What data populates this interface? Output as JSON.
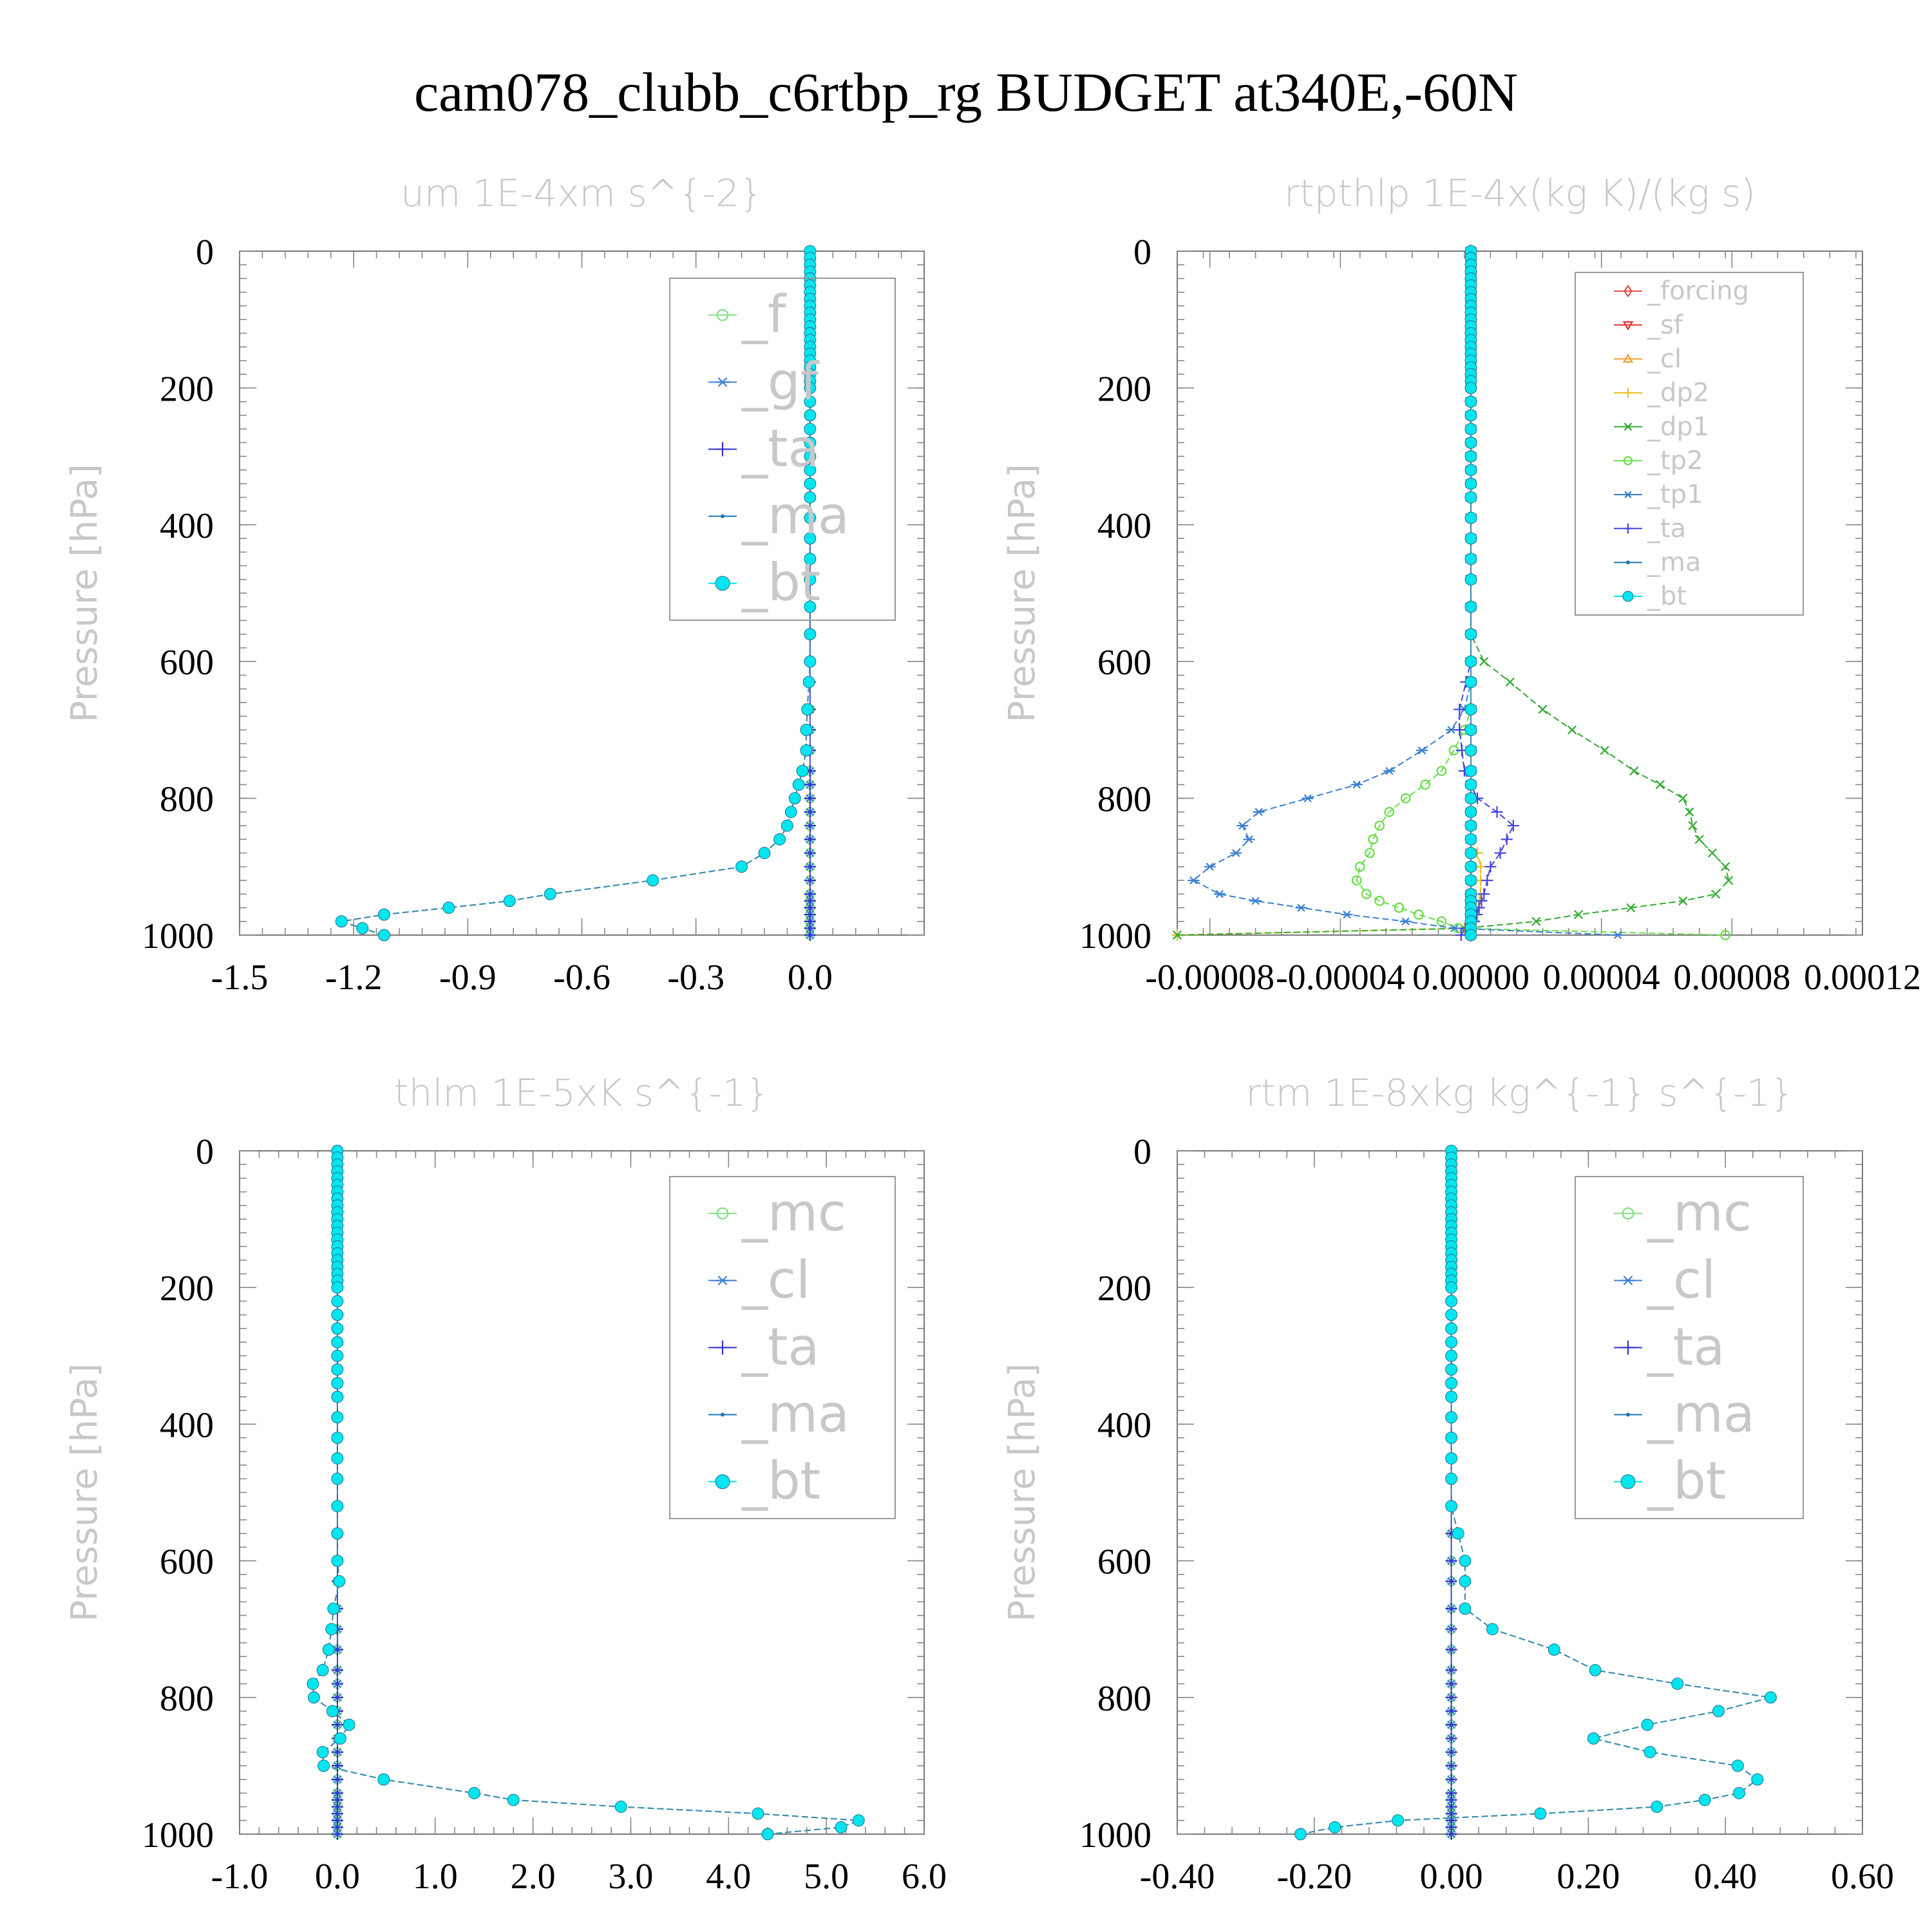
{
  "title": "cam078_clubb_c6rtbp_rg  BUDGET at340E,-60N",
  "chart_data": [
    {
      "type": "line",
      "title": "um  1E-4xm s^{-2}",
      "ylabel": "Pressure [hPa]",
      "xlim": [
        -1.5,
        0.3
      ],
      "ylim": [
        1000,
        0
      ],
      "xticks": [
        -1.5,
        -1.2,
        -0.9,
        -0.6,
        -0.3,
        0.0
      ],
      "xtick_labels": [
        "-1.5",
        "-1.2",
        "-0.9",
        "-0.6",
        "-0.3",
        "0.0"
      ],
      "yticks": [
        0,
        200,
        400,
        600,
        800,
        1000
      ],
      "ytick_labels": [
        "0",
        "200",
        "400",
        "600",
        "800",
        "1000"
      ],
      "legend_position": "top-right",
      "legend_font": 80,
      "legend_box": [
        1040,
        432,
        1390,
        963
      ],
      "pressure": [
        0,
        10,
        20,
        30,
        40,
        50,
        60,
        70,
        80,
        90,
        100,
        110,
        120,
        130,
        140,
        150,
        160,
        170,
        180,
        190,
        200,
        220,
        240,
        260,
        280,
        300,
        320,
        340,
        360,
        390,
        420,
        450,
        480,
        520,
        560,
        600,
        630,
        670,
        700,
        730,
        760,
        780,
        800,
        820,
        840,
        860,
        880,
        900,
        920,
        940,
        950,
        960,
        970,
        980,
        990,
        1000
      ],
      "series": [
        {
          "name": "_f",
          "color": "#80e080",
          "marker": "circle-open",
          "mode": "zero"
        },
        {
          "name": "_gf",
          "color": "#3a7fd0",
          "marker": "star",
          "mode": "zero"
        },
        {
          "name": "_ta",
          "color": "#3333cc",
          "marker": "plus",
          "mode": "zero"
        },
        {
          "name": "_ma",
          "color": "#1f77b4",
          "marker": "dot",
          "mode": "trace"
        },
        {
          "name": "_bt",
          "color": "#00e5ee",
          "marker": "filled",
          "mode": "trace"
        }
      ],
      "profile": [
        [
          0,
          0
        ],
        [
          600,
          0
        ],
        [
          700,
          -0.01
        ],
        [
          730,
          -0.01
        ],
        [
          760,
          -0.02
        ],
        [
          780,
          -0.03
        ],
        [
          800,
          -0.04
        ],
        [
          820,
          -0.05
        ],
        [
          840,
          -0.06
        ],
        [
          860,
          -0.08
        ],
        [
          880,
          -0.12
        ],
        [
          900,
          -0.18
        ],
        [
          910,
          -0.3
        ],
        [
          925,
          -0.47
        ],
        [
          935,
          -0.63
        ],
        [
          950,
          -0.79
        ],
        [
          960,
          -0.95
        ],
        [
          970,
          -1.12
        ],
        [
          978,
          -1.24
        ],
        [
          988,
          -1.2
        ],
        [
          995,
          -1.12
        ]
      ]
    },
    {
      "type": "line",
      "title": "rtpthlp  1E-4x(kg K)/(kg s)",
      "ylabel": "Pressure [hPa]",
      "xlim": [
        -9e-05,
        0.00012
      ],
      "ylim": [
        1000,
        0
      ],
      "xticks": [
        -8e-05,
        -4e-05,
        0.0,
        4e-05,
        8e-05,
        0.00012
      ],
      "xtick_labels": [
        "-0.00008",
        "-0.00004",
        "0.00000",
        "0.00004",
        "0.00008",
        "0.00012"
      ],
      "yticks": [
        0,
        200,
        400,
        600,
        800,
        1000
      ],
      "ytick_labels": [
        "0",
        "200",
        "400",
        "600",
        "800",
        "1000"
      ],
      "legend_position": "top-right",
      "legend_font": 40,
      "legend_box": [
        2446,
        423,
        2800,
        955
      ],
      "pressure": [
        0,
        10,
        20,
        30,
        40,
        50,
        60,
        70,
        80,
        90,
        100,
        110,
        120,
        130,
        140,
        150,
        160,
        170,
        180,
        190,
        200,
        220,
        240,
        260,
        280,
        300,
        320,
        340,
        360,
        390,
        420,
        450,
        480,
        520,
        560,
        600,
        630,
        670,
        700,
        730,
        760,
        780,
        800,
        820,
        840,
        860,
        880,
        900,
        920,
        940,
        950,
        960,
        970,
        980,
        990,
        1000
      ],
      "series": [
        {
          "name": "_forcing",
          "color": "#e05050",
          "marker": "diamond",
          "mode": "zero"
        },
        {
          "name": "_sf",
          "color": "#e03030",
          "marker": "tri-down",
          "mode": "zero"
        },
        {
          "name": "_cl",
          "color": "#f0a030",
          "marker": "tri-up",
          "mode": "zero"
        },
        {
          "name": "_dp2",
          "color": "#e8c020",
          "marker": "plus",
          "mode": "profile",
          "profile": [
            [
              0,
              0
            ],
            [
              860,
              0
            ],
            [
              880,
              2e-06
            ],
            [
              900,
              3e-06
            ],
            [
              940,
              3e-06
            ],
            [
              970,
              2e-06
            ],
            [
              990,
              -2e-06
            ],
            [
              995,
              -9e-05
            ]
          ]
        },
        {
          "name": "_dp1",
          "color": "#33aa33",
          "marker": "x",
          "mode": "profile",
          "profile": [
            [
              0,
              0
            ],
            [
              560,
              0
            ],
            [
              600,
              4e-06
            ],
            [
              630,
              1.2e-05
            ],
            [
              670,
              2.2e-05
            ],
            [
              700,
              3.1e-05
            ],
            [
              730,
              4.1e-05
            ],
            [
              760,
              5e-05
            ],
            [
              780,
              5.8e-05
            ],
            [
              800,
              6.5e-05
            ],
            [
              820,
              6.7e-05
            ],
            [
              840,
              6.8e-05
            ],
            [
              860,
              7e-05
            ],
            [
              880,
              7.4e-05
            ],
            [
              900,
              7.8e-05
            ],
            [
              920,
              7.9e-05
            ],
            [
              940,
              7.5e-05
            ],
            [
              950,
              6.5e-05
            ],
            [
              960,
              4.9e-05
            ],
            [
              970,
              3.3e-05
            ],
            [
              980,
              2e-05
            ],
            [
              990,
              -2e-06
            ],
            [
              995,
              -9e-05
            ]
          ]
        },
        {
          "name": "_tp2",
          "color": "#66dd44",
          "marker": "circle-open",
          "mode": "profile",
          "profile": [
            [
              0,
              0
            ],
            [
              680,
              0
            ],
            [
              720,
              -4e-06
            ],
            [
              760,
              -9e-06
            ],
            [
              780,
              -1.4e-05
            ],
            [
              800,
              -2e-05
            ],
            [
              820,
              -2.5e-05
            ],
            [
              840,
              -2.8e-05
            ],
            [
              860,
              -3e-05
            ],
            [
              880,
              -3.1e-05
            ],
            [
              900,
              -3.4e-05
            ],
            [
              920,
              -3.5e-05
            ],
            [
              940,
              -3.2e-05
            ],
            [
              950,
              -2.8e-05
            ],
            [
              960,
              -2.2e-05
            ],
            [
              970,
              -1.6e-05
            ],
            [
              980,
              -9e-06
            ],
            [
              990,
              -4e-06
            ],
            [
              995,
              7.8e-05
            ]
          ]
        },
        {
          "name": "_tp1",
          "color": "#3a7fd0",
          "marker": "star",
          "mode": "profile",
          "profile": [
            [
              0,
              0
            ],
            [
              640,
              0
            ],
            [
              670,
              -2e-06
            ],
            [
              700,
              -6e-06
            ],
            [
              730,
              -1.5e-05
            ],
            [
              760,
              -2.5e-05
            ],
            [
              780,
              -3.5e-05
            ],
            [
              800,
              -5e-05
            ],
            [
              820,
              -6.5e-05
            ],
            [
              840,
              -7e-05
            ],
            [
              860,
              -6.8e-05
            ],
            [
              880,
              -7.2e-05
            ],
            [
              900,
              -8e-05
            ],
            [
              920,
              -8.5e-05
            ],
            [
              940,
              -7.7e-05
            ],
            [
              950,
              -6.6e-05
            ],
            [
              960,
              -5.2e-05
            ],
            [
              970,
              -3.8e-05
            ],
            [
              980,
              -2e-05
            ],
            [
              990,
              -5e-06
            ],
            [
              995,
              4.5e-05
            ]
          ]
        },
        {
          "name": "_ta",
          "color": "#4444dd",
          "marker": "plus",
          "mode": "profile",
          "profile": [
            [
              0,
              0
            ],
            [
              600,
              0
            ],
            [
              640,
              -2e-06
            ],
            [
              680,
              -4e-06
            ],
            [
              720,
              -3e-06
            ],
            [
              760,
              -2e-06
            ],
            [
              800,
              2e-06
            ],
            [
              820,
              8e-06
            ],
            [
              840,
              1.3e-05
            ],
            [
              860,
              1.1e-05
            ],
            [
              880,
              9e-06
            ],
            [
              900,
              6e-06
            ],
            [
              940,
              4e-06
            ],
            [
              980,
              1e-06
            ],
            [
              995,
              -3e-06
            ]
          ]
        },
        {
          "name": "_ma",
          "color": "#1f77b4",
          "marker": "dot",
          "mode": "zero"
        },
        {
          "name": "_bt",
          "color": "#00e5ee",
          "marker": "filled",
          "mode": "zero"
        }
      ]
    },
    {
      "type": "line",
      "title": "thlm  1E-5xK s^{-1}",
      "ylabel": "Pressure [hPa]",
      "xlim": [
        -1.0,
        6.0
      ],
      "ylim": [
        1000,
        0
      ],
      "xticks": [
        -1.0,
        0.0,
        1.0,
        2.0,
        3.0,
        4.0,
        5.0,
        6.0
      ],
      "xtick_labels": [
        "-1.0",
        "0.0",
        "1.0",
        "2.0",
        "3.0",
        "4.0",
        "5.0",
        "6.0"
      ],
      "yticks": [
        0,
        200,
        400,
        600,
        800,
        1000
      ],
      "ytick_labels": [
        "0",
        "200",
        "400",
        "600",
        "800",
        "1000"
      ],
      "legend_position": "top-right",
      "legend_font": 80,
      "legend_box": [
        1040,
        1827,
        1390,
        2358
      ],
      "pressure": [
        0,
        10,
        20,
        30,
        40,
        50,
        60,
        70,
        80,
        90,
        100,
        110,
        120,
        130,
        140,
        150,
        160,
        170,
        180,
        190,
        200,
        220,
        240,
        260,
        280,
        300,
        320,
        340,
        360,
        390,
        420,
        450,
        480,
        520,
        560,
        600,
        630,
        670,
        700,
        730,
        760,
        780,
        800,
        820,
        840,
        860,
        880,
        900,
        920,
        940,
        950,
        960,
        970,
        980,
        990,
        1000
      ],
      "series": [
        {
          "name": "_mc",
          "color": "#80e080",
          "marker": "circle-open",
          "mode": "zero"
        },
        {
          "name": "_cl",
          "color": "#3a7fd0",
          "marker": "star",
          "mode": "zero"
        },
        {
          "name": "_ta",
          "color": "#3333cc",
          "marker": "plus",
          "mode": "zero"
        },
        {
          "name": "_ma",
          "color": "#1f77b4",
          "marker": "dot",
          "mode": "trace"
        },
        {
          "name": "_bt",
          "color": "#00e5ee",
          "marker": "filled",
          "mode": "trace"
        }
      ],
      "profile": [
        [
          0,
          0
        ],
        [
          600,
          0
        ],
        [
          630,
          0.02
        ],
        [
          670,
          -0.04
        ],
        [
          700,
          -0.06
        ],
        [
          730,
          -0.09
        ],
        [
          760,
          -0.15
        ],
        [
          780,
          -0.25
        ],
        [
          800,
          -0.24
        ],
        [
          820,
          -0.05
        ],
        [
          840,
          0.12
        ],
        [
          860,
          0.03
        ],
        [
          880,
          -0.15
        ],
        [
          900,
          -0.14
        ],
        [
          910,
          0.12
        ],
        [
          925,
          0.65
        ],
        [
          935,
          1.2
        ],
        [
          950,
          1.8
        ],
        [
          960,
          2.9
        ],
        [
          970,
          4.3
        ],
        [
          978,
          5.3
        ],
        [
          988,
          5.45
        ],
        [
          995,
          4.4
        ]
      ]
    },
    {
      "type": "line",
      "title": "rtm  1E-8xkg kg^{-1} s^{-1}",
      "ylabel": "Pressure [hPa]",
      "xlim": [
        -0.4,
        0.6
      ],
      "ylim": [
        1000,
        0
      ],
      "xticks": [
        -0.4,
        -0.2,
        0.0,
        0.2,
        0.4,
        0.6
      ],
      "xtick_labels": [
        "-0.40",
        "-0.20",
        "0.00",
        "0.20",
        "0.40",
        "0.60"
      ],
      "yticks": [
        0,
        200,
        400,
        600,
        800,
        1000
      ],
      "ytick_labels": [
        "0",
        "200",
        "400",
        "600",
        "800",
        "1000"
      ],
      "legend_position": "top-right",
      "legend_font": 80,
      "legend_box": [
        2446,
        1827,
        2800,
        2358
      ],
      "pressure": [
        0,
        10,
        20,
        30,
        40,
        50,
        60,
        70,
        80,
        90,
        100,
        110,
        120,
        130,
        140,
        150,
        160,
        170,
        180,
        190,
        200,
        220,
        240,
        260,
        280,
        300,
        320,
        340,
        360,
        390,
        420,
        450,
        480,
        520,
        560,
        600,
        630,
        670,
        700,
        730,
        760,
        780,
        800,
        820,
        840,
        860,
        880,
        900,
        920,
        940,
        950,
        960,
        970,
        980,
        990,
        1000
      ],
      "series": [
        {
          "name": "_mc",
          "color": "#80e080",
          "marker": "circle-open",
          "mode": "zero"
        },
        {
          "name": "_cl",
          "color": "#3a7fd0",
          "marker": "star",
          "mode": "zero"
        },
        {
          "name": "_ta",
          "color": "#3333cc",
          "marker": "plus",
          "mode": "zero"
        },
        {
          "name": "_ma",
          "color": "#1f77b4",
          "marker": "dot",
          "mode": "trace"
        },
        {
          "name": "_bt",
          "color": "#00e5ee",
          "marker": "filled",
          "mode": "trace"
        }
      ],
      "profile": [
        [
          0,
          0
        ],
        [
          480,
          0
        ],
        [
          520,
          0.0
        ],
        [
          560,
          0.01
        ],
        [
          600,
          0.02
        ],
        [
          630,
          0.02
        ],
        [
          670,
          0.02
        ],
        [
          700,
          0.06
        ],
        [
          730,
          0.15
        ],
        [
          760,
          0.21
        ],
        [
          780,
          0.33
        ],
        [
          805,
          0.5
        ],
        [
          820,
          0.39
        ],
        [
          845,
          0.26
        ],
        [
          865,
          0.19
        ],
        [
          880,
          0.29
        ],
        [
          905,
          0.45
        ],
        [
          912,
          0.46
        ],
        [
          930,
          0.43
        ],
        [
          940,
          0.42
        ],
        [
          950,
          0.37
        ],
        [
          960,
          0.3
        ],
        [
          970,
          0.13
        ],
        [
          978,
          -0.06
        ],
        [
          988,
          -0.15
        ],
        [
          995,
          -0.22
        ]
      ]
    }
  ]
}
